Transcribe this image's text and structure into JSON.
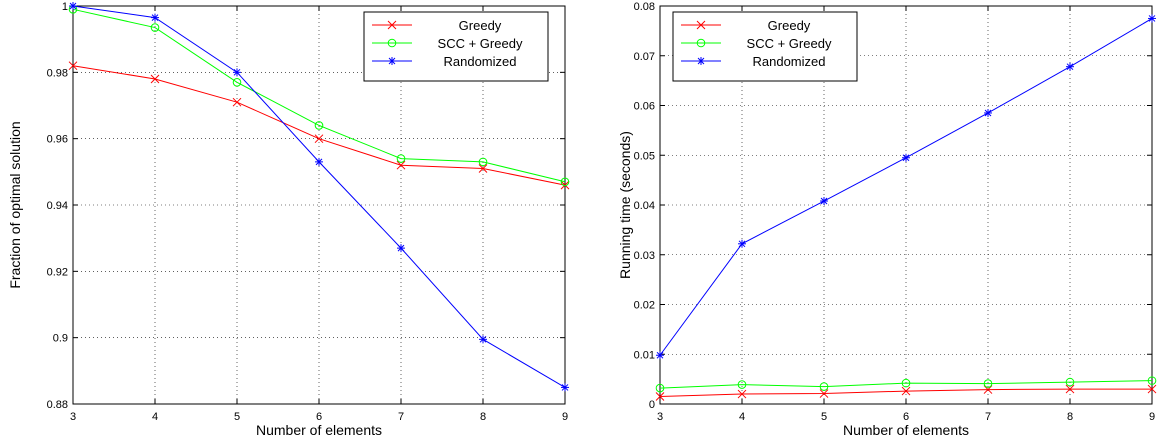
{
  "chart_data": [
    {
      "type": "line",
      "title": "",
      "xlabel": "Number of elements",
      "ylabel": "Fraction of optimal solution",
      "x": [
        3,
        4,
        5,
        6,
        7,
        8,
        9
      ],
      "xlim": [
        3,
        9
      ],
      "ylim": [
        0.88,
        1.0
      ],
      "xticks": [
        "3",
        "4",
        "5",
        "6",
        "7",
        "8",
        "9"
      ],
      "yticks": [
        "0.88",
        "0.9",
        "0.92",
        "0.94",
        "0.96",
        "0.98",
        "1"
      ],
      "ytick_values": [
        0.88,
        0.9,
        0.92,
        0.94,
        0.96,
        0.98,
        1.0
      ],
      "grid": true,
      "legend_position": "top-right",
      "series": [
        {
          "name": "Greedy",
          "color": "#ff0000",
          "marker": "x",
          "values": [
            0.982,
            0.978,
            0.971,
            0.96,
            0.952,
            0.951,
            0.946
          ]
        },
        {
          "name": "SCC + Greedy",
          "color": "#00ff00",
          "marker": "circle",
          "values": [
            0.999,
            0.9935,
            0.977,
            0.964,
            0.954,
            0.953,
            0.947
          ]
        },
        {
          "name": "Randomized",
          "color": "#0000ff",
          "marker": "star",
          "values": [
            1.0,
            0.9965,
            0.98,
            0.953,
            0.927,
            0.8995,
            0.885
          ]
        }
      ]
    },
    {
      "type": "line",
      "title": "",
      "xlabel": "Number of elements",
      "ylabel": "Running time (seconds)",
      "x": [
        3,
        4,
        5,
        6,
        7,
        8,
        9
      ],
      "xlim": [
        3,
        9
      ],
      "ylim": [
        0,
        0.08
      ],
      "xticks": [
        "3",
        "4",
        "5",
        "6",
        "7",
        "8",
        "9"
      ],
      "yticks": [
        "0",
        "0.01",
        "0.02",
        "0.03",
        "0.04",
        "0.05",
        "0.06",
        "0.07",
        "0.08"
      ],
      "ytick_values": [
        0,
        0.01,
        0.02,
        0.03,
        0.04,
        0.05,
        0.06,
        0.07,
        0.08
      ],
      "grid": true,
      "legend_position": "top-left",
      "series": [
        {
          "name": "Greedy",
          "color": "#ff0000",
          "marker": "x",
          "values": [
            0.0015,
            0.002,
            0.0021,
            0.0026,
            0.0029,
            0.003,
            0.003
          ]
        },
        {
          "name": "SCC + Greedy",
          "color": "#00ff00",
          "marker": "circle",
          "values": [
            0.0032,
            0.0039,
            0.0035,
            0.0042,
            0.0041,
            0.0044,
            0.0047
          ]
        },
        {
          "name": "Randomized",
          "color": "#0000ff",
          "marker": "star",
          "values": [
            0.0098,
            0.0322,
            0.0408,
            0.0495,
            0.0585,
            0.0678,
            0.0775
          ]
        }
      ]
    }
  ]
}
